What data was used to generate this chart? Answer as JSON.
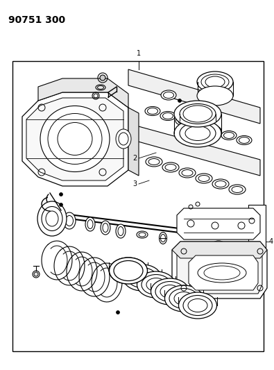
{
  "title": "90751 300",
  "title_fontsize": 10,
  "title_fontweight": "bold",
  "background_color": "#ffffff",
  "line_color": "#000000",
  "fig_width": 3.95,
  "fig_height": 5.33,
  "dpi": 100
}
